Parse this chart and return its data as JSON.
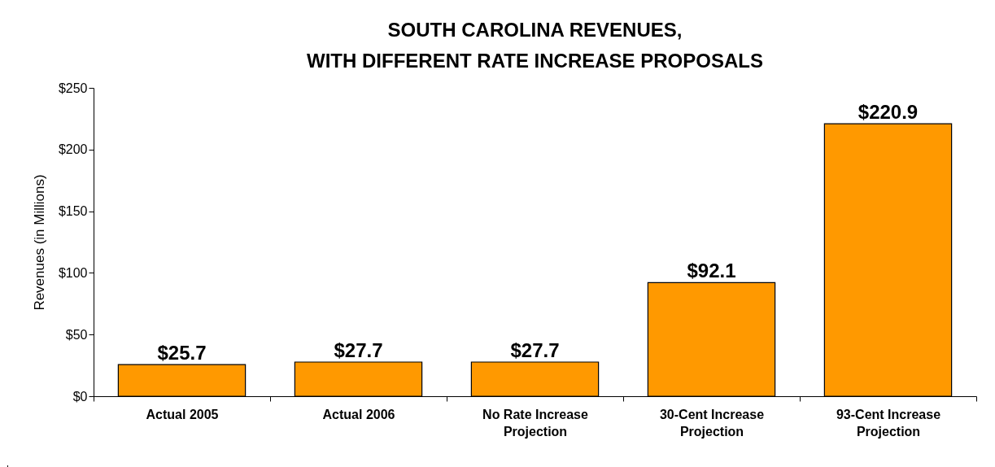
{
  "chart_data": {
    "type": "bar",
    "title": "SOUTH CAROLINA REVENUES, WITH DIFFERENT RATE INCREASE PROPOSALS",
    "ylabel": "Revenues (in Millions)",
    "categories": [
      "Actual 2005",
      "Actual 2006",
      "No Rate Increase Projection",
      "30-Cent Increase Projection",
      "93-Cent Increase Projection"
    ],
    "values": [
      25.7,
      27.7,
      27.7,
      92.1,
      220.9
    ],
    "value_labels": [
      "$25.7",
      "$27.7",
      "$27.7",
      "$92.1",
      "$220.9"
    ],
    "color": "#ff9900",
    "ylim": [
      0,
      250
    ],
    "yticks": [
      {
        "value": 0,
        "label": "$0"
      },
      {
        "value": 50,
        "label": "$50"
      },
      {
        "value": 100,
        "label": "$100"
      },
      {
        "value": 150,
        "label": "$150"
      },
      {
        "value": 200,
        "label": "$200"
      },
      {
        "value": 250,
        "label": "$250"
      }
    ],
    "grid": false
  }
}
